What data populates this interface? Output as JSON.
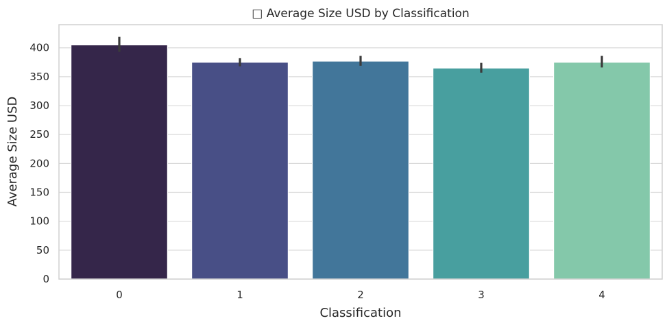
{
  "chart_data": {
    "type": "bar",
    "title": "□ Average Size USD by Classification",
    "xlabel": "Classification",
    "ylabel": "Average Size USD",
    "categories": [
      "0",
      "1",
      "2",
      "3",
      "4"
    ],
    "values": [
      405,
      375,
      377,
      365,
      375
    ],
    "error_low": [
      393,
      368,
      369,
      357,
      366
    ],
    "error_high": [
      419,
      382,
      386,
      374,
      386
    ],
    "ylim": [
      0,
      440
    ],
    "yticks": [
      0,
      50,
      100,
      150,
      200,
      250,
      300,
      350,
      400
    ],
    "grid": "horizontal",
    "colors": [
      "#35264a",
      "#484f86",
      "#42769a",
      "#489f9f",
      "#84c8aa"
    ]
  }
}
